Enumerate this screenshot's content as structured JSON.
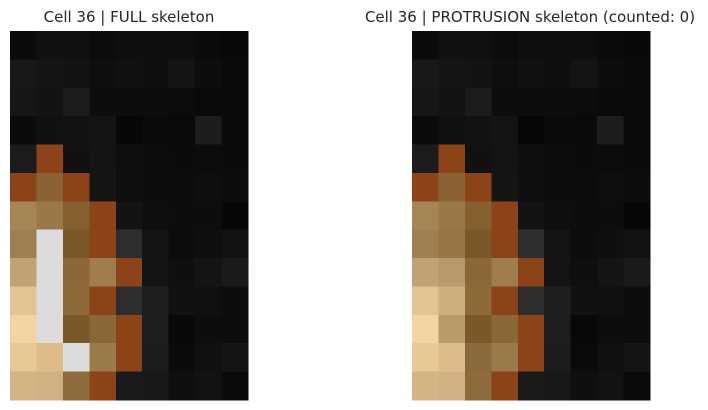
{
  "figure": {
    "panels": [
      {
        "title": "Cell 36 | FULL skeleton"
      },
      {
        "title": "Cell 36 | PROTRUSION skeleton (counted: 0)"
      }
    ]
  },
  "chart_data": [
    {
      "type": "heatmap",
      "title": "Cell 36 | FULL skeleton",
      "rows": 13,
      "cols": 9,
      "axes_visible": false,
      "grid": false,
      "legend": "none",
      "colors": [
        [
          "#0b0b0b",
          "#111111",
          "#101010",
          "#0c0c0c",
          "#0f0f0f",
          "#0f0f0f",
          "#0e0e0e",
          "#0b0b0b",
          "#090909"
        ],
        [
          "#181818",
          "#151515",
          "#131313",
          "#0e0e0e",
          "#111111",
          "#0f0f0f",
          "#141414",
          "#0d0d0d",
          "#0a0a0a"
        ],
        [
          "#161616",
          "#131313",
          "#1c1c1c",
          "#0d0d0d",
          "#0d0d0d",
          "#0d0d0d",
          "#0c0c0c",
          "#0a0a0a",
          "#0b0b0b"
        ],
        [
          "#0b0b0b",
          "#111111",
          "#121212",
          "#141414",
          "#070707",
          "#0b0b0b",
          "#0a0a0a",
          "#1d1d1d",
          "#0b0b0b"
        ],
        [
          "#1c1c1c",
          "#8c4318",
          "#111111",
          "#141414",
          "#0e0e0e",
          "#0c0c0c",
          "#0b0b0b",
          "#0c0c0c",
          "#0b0b0b"
        ],
        [
          "#8c4318",
          "#8b6233",
          "#8c4318",
          "#151515",
          "#0e0e0e",
          "#0c0c0c",
          "#0c0c0c",
          "#0e0e0e",
          "#0c0c0c"
        ],
        [
          "#a68555",
          "#9a7847",
          "#86612f",
          "#8c4318",
          "#131313",
          "#0f0f0f",
          "#0d0d0d",
          "#0d0d0d",
          "#070707"
        ],
        [
          "#9f7e52",
          "#dcdcdc",
          "#7a5728",
          "#8c4318",
          "#2e2e2e",
          "#141414",
          "#0c0c0c",
          "#0f0f0f",
          "#121212"
        ],
        [
          "#c0a277",
          "#dcdcdc",
          "#8c6838",
          "#9f7d4d",
          "#8c4318",
          "#141414",
          "#0f0f0f",
          "#141414",
          "#1a1a1a"
        ],
        [
          "#e2c493",
          "#dcdcdc",
          "#8f6a39",
          "#8c4318",
          "#2e2e2e",
          "#1e1e1e",
          "#111111",
          "#101010",
          "#0d0d0d"
        ],
        [
          "#f2d3a1",
          "#dcdcdc",
          "#7b5829",
          "#8a6737",
          "#8c4318",
          "#1e1e1e",
          "#080808",
          "#0d0d0d",
          "#0c0c0c"
        ],
        [
          "#e8c996",
          "#ddbc8a",
          "#dcdcdc",
          "#9b7a4b",
          "#8c4318",
          "#1c1c1c",
          "#0b0b0b",
          "#101010",
          "#151515"
        ],
        [
          "#d4b385",
          "#d1b184",
          "#8e6b3c",
          "#8c4318",
          "#1a1a1a",
          "#181818",
          "#0f0f0f",
          "#121212",
          "#0a0a0a"
        ]
      ]
    },
    {
      "type": "heatmap",
      "title": "Cell 36 | PROTRUSION skeleton (counted: 0)",
      "rows": 13,
      "cols": 9,
      "axes_visible": false,
      "grid": false,
      "legend": "none",
      "colors": [
        [
          "#0b0b0b",
          "#111111",
          "#101010",
          "#0c0c0c",
          "#0f0f0f",
          "#0f0f0f",
          "#0e0e0e",
          "#0b0b0b",
          "#090909"
        ],
        [
          "#181818",
          "#151515",
          "#131313",
          "#0e0e0e",
          "#111111",
          "#0f0f0f",
          "#141414",
          "#0d0d0d",
          "#0a0a0a"
        ],
        [
          "#161616",
          "#131313",
          "#1c1c1c",
          "#0d0d0d",
          "#0d0d0d",
          "#0d0d0d",
          "#0c0c0c",
          "#0a0a0a",
          "#0b0b0b"
        ],
        [
          "#0b0b0b",
          "#111111",
          "#121212",
          "#141414",
          "#070707",
          "#0b0b0b",
          "#0a0a0a",
          "#1d1d1d",
          "#0b0b0b"
        ],
        [
          "#1c1c1c",
          "#8c4318",
          "#111111",
          "#141414",
          "#0e0e0e",
          "#0c0c0c",
          "#0b0b0b",
          "#0c0c0c",
          "#0b0b0b"
        ],
        [
          "#8c4318",
          "#8b6233",
          "#8c4318",
          "#151515",
          "#0e0e0e",
          "#0c0c0c",
          "#0c0c0c",
          "#0e0e0e",
          "#0c0c0c"
        ],
        [
          "#a68555",
          "#9a7847",
          "#86612f",
          "#8c4318",
          "#131313",
          "#0f0f0f",
          "#0d0d0d",
          "#0d0d0d",
          "#070707"
        ],
        [
          "#9f7e52",
          "#987544",
          "#7a5728",
          "#8c4318",
          "#2e2e2e",
          "#141414",
          "#0c0c0c",
          "#0f0f0f",
          "#121212"
        ],
        [
          "#c0a277",
          "#b8996b",
          "#8c6838",
          "#9f7d4d",
          "#8c4318",
          "#141414",
          "#0f0f0f",
          "#141414",
          "#1a1a1a"
        ],
        [
          "#e2c493",
          "#cfae7e",
          "#8f6a39",
          "#8c4318",
          "#2e2e2e",
          "#1e1e1e",
          "#111111",
          "#101010",
          "#0d0d0d"
        ],
        [
          "#f2d3a1",
          "#b99a6a",
          "#7b5829",
          "#8a6737",
          "#8c4318",
          "#1e1e1e",
          "#080808",
          "#0d0d0d",
          "#0c0c0c"
        ],
        [
          "#e8c996",
          "#ddbc8a",
          "#8a6a3d",
          "#9b7a4b",
          "#8c4318",
          "#1c1c1c",
          "#0b0b0b",
          "#101010",
          "#151515"
        ],
        [
          "#d4b385",
          "#d1b184",
          "#8e6b3c",
          "#8c4318",
          "#1a1a1a",
          "#181818",
          "#0f0f0f",
          "#121212",
          "#0a0a0a"
        ]
      ]
    }
  ]
}
